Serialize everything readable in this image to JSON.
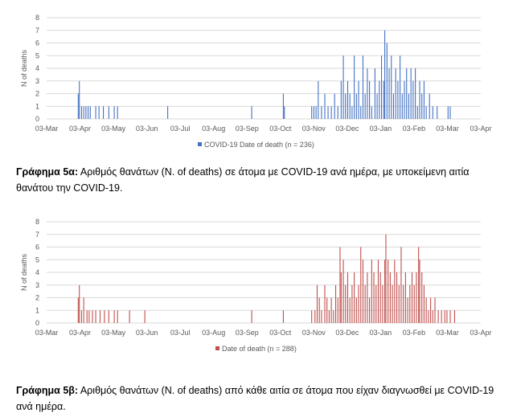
{
  "chart_data": [
    {
      "type": "bar",
      "ylabel": "N of deaths",
      "ylim": [
        0,
        8
      ],
      "yticks": [
        0,
        1,
        2,
        3,
        4,
        5,
        6,
        7,
        8
      ],
      "x_range": [
        "2020-03-01",
        "2021-04-03"
      ],
      "x_ticks": [
        "03-Mar",
        "03-Apr",
        "03-May",
        "03-Jun",
        "03-Jul",
        "03-Aug",
        "03-Sep",
        "03-Oct",
        "03-Nov",
        "03-Dec",
        "03-Jan",
        "03-Feb",
        "03-Mar",
        "03-Apr"
      ],
      "legend": "COVID-19 Date of death (n = 236)",
      "legend_position": "bottom",
      "grid": true,
      "color": "#4472c4",
      "series": [
        {
          "name": "COVID-19 Date of death (n = 236)",
          "points": [
            [
              "2020-03-30",
              2
            ],
            [
              "2020-03-31",
              3
            ],
            [
              "2020-04-02",
              1
            ],
            [
              "2020-04-04",
              1
            ],
            [
              "2020-04-06",
              1
            ],
            [
              "2020-04-08",
              1
            ],
            [
              "2020-04-10",
              1
            ],
            [
              "2020-04-15",
              1
            ],
            [
              "2020-04-18",
              1
            ],
            [
              "2020-04-22",
              1
            ],
            [
              "2020-04-27",
              1
            ],
            [
              "2020-05-02",
              1
            ],
            [
              "2020-05-05",
              1
            ],
            [
              "2020-06-20",
              1
            ],
            [
              "2020-09-05",
              1
            ],
            [
              "2020-10-04",
              2
            ],
            [
              "2020-10-05",
              1
            ],
            [
              "2020-10-30",
              1
            ],
            [
              "2020-11-01",
              1
            ],
            [
              "2020-11-03",
              1
            ],
            [
              "2020-11-05",
              3
            ],
            [
              "2020-11-08",
              1
            ],
            [
              "2020-11-11",
              2
            ],
            [
              "2020-11-14",
              1
            ],
            [
              "2020-11-17",
              1
            ],
            [
              "2020-11-20",
              2
            ],
            [
              "2020-11-23",
              1
            ],
            [
              "2020-11-26",
              3
            ],
            [
              "2020-11-28",
              5
            ],
            [
              "2020-11-30",
              2
            ],
            [
              "2020-12-02",
              3
            ],
            [
              "2020-12-04",
              2
            ],
            [
              "2020-12-06",
              1
            ],
            [
              "2020-12-08",
              5
            ],
            [
              "2020-12-10",
              2
            ],
            [
              "2020-12-12",
              3
            ],
            [
              "2020-12-14",
              1
            ],
            [
              "2020-12-16",
              5
            ],
            [
              "2020-12-18",
              2
            ],
            [
              "2020-12-20",
              4
            ],
            [
              "2020-12-22",
              3
            ],
            [
              "2020-12-24",
              1
            ],
            [
              "2020-12-27",
              4
            ],
            [
              "2020-12-29",
              2
            ],
            [
              "2020-12-31",
              3
            ],
            [
              "2021-01-02",
              5
            ],
            [
              "2021-01-04",
              3
            ],
            [
              "2021-01-05",
              7
            ],
            [
              "2021-01-07",
              6
            ],
            [
              "2021-01-09",
              4
            ],
            [
              "2021-01-11",
              5
            ],
            [
              "2021-01-13",
              2
            ],
            [
              "2021-01-15",
              4
            ],
            [
              "2021-01-17",
              3
            ],
            [
              "2021-01-19",
              5
            ],
            [
              "2021-01-21",
              2
            ],
            [
              "2021-01-23",
              3
            ],
            [
              "2021-01-25",
              4
            ],
            [
              "2021-01-27",
              2
            ],
            [
              "2021-01-29",
              4
            ],
            [
              "2021-01-31",
              3
            ],
            [
              "2021-02-02",
              4
            ],
            [
              "2021-02-04",
              1
            ],
            [
              "2021-02-06",
              3
            ],
            [
              "2021-02-08",
              2
            ],
            [
              "2021-02-10",
              3
            ],
            [
              "2021-02-12",
              1
            ],
            [
              "2021-02-15",
              2
            ],
            [
              "2021-02-18",
              1
            ],
            [
              "2021-02-22",
              1
            ],
            [
              "2021-03-04",
              1
            ],
            [
              "2021-03-06",
              1
            ]
          ]
        }
      ]
    },
    {
      "type": "bar",
      "ylabel": "N of deaths",
      "ylim": [
        0,
        8
      ],
      "yticks": [
        0,
        1,
        2,
        3,
        4,
        5,
        6,
        7,
        8
      ],
      "x_range": [
        "2020-03-01",
        "2021-04-03"
      ],
      "x_ticks": [
        "03-Mar",
        "03-Apr",
        "03-May",
        "03-Jun",
        "03-Jul",
        "03-Aug",
        "03-Sep",
        "03-Oct",
        "03-Nov",
        "03-Dec",
        "03-Jan",
        "03-Feb",
        "03-Mar",
        "03-Apr"
      ],
      "legend": "Date of death (n = 288)",
      "legend_position": "bottom",
      "grid": true,
      "color": "#c0504d",
      "series": [
        {
          "name": "Date of death (n = 288)",
          "points": [
            [
              "2020-03-30",
              2
            ],
            [
              "2020-03-31",
              3
            ],
            [
              "2020-04-02",
              1
            ],
            [
              "2020-04-04",
              2
            ],
            [
              "2020-04-07",
              1
            ],
            [
              "2020-04-09",
              1
            ],
            [
              "2020-04-12",
              1
            ],
            [
              "2020-04-15",
              1
            ],
            [
              "2020-04-19",
              1
            ],
            [
              "2020-04-23",
              1
            ],
            [
              "2020-04-27",
              1
            ],
            [
              "2020-05-02",
              1
            ],
            [
              "2020-05-05",
              1
            ],
            [
              "2020-05-16",
              1
            ],
            [
              "2020-05-30",
              1
            ],
            [
              "2020-09-05",
              1
            ],
            [
              "2020-10-04",
              1
            ],
            [
              "2020-10-30",
              1
            ],
            [
              "2020-11-02",
              1
            ],
            [
              "2020-11-04",
              3
            ],
            [
              "2020-11-06",
              2
            ],
            [
              "2020-11-08",
              1
            ],
            [
              "2020-11-11",
              3
            ],
            [
              "2020-11-13",
              2
            ],
            [
              "2020-11-15",
              1
            ],
            [
              "2020-11-17",
              2
            ],
            [
              "2020-11-19",
              1
            ],
            [
              "2020-11-21",
              3
            ],
            [
              "2020-11-23",
              2
            ],
            [
              "2020-11-25",
              6
            ],
            [
              "2020-11-26",
              4
            ],
            [
              "2020-11-28",
              5
            ],
            [
              "2020-11-30",
              3
            ],
            [
              "2020-12-02",
              4
            ],
            [
              "2020-12-04",
              2
            ],
            [
              "2020-12-06",
              3
            ],
            [
              "2020-12-08",
              4
            ],
            [
              "2020-12-10",
              2
            ],
            [
              "2020-12-12",
              3
            ],
            [
              "2020-12-14",
              6
            ],
            [
              "2020-12-16",
              5
            ],
            [
              "2020-12-18",
              3
            ],
            [
              "2020-12-20",
              4
            ],
            [
              "2020-12-22",
              2
            ],
            [
              "2020-12-24",
              5
            ],
            [
              "2020-12-26",
              4
            ],
            [
              "2020-12-28",
              3
            ],
            [
              "2020-12-30",
              5
            ],
            [
              "2021-01-01",
              4
            ],
            [
              "2021-01-03",
              3
            ],
            [
              "2021-01-05",
              5
            ],
            [
              "2021-01-06",
              7
            ],
            [
              "2021-01-08",
              5
            ],
            [
              "2021-01-10",
              4
            ],
            [
              "2021-01-12",
              3
            ],
            [
              "2021-01-14",
              5
            ],
            [
              "2021-01-16",
              4
            ],
            [
              "2021-01-18",
              3
            ],
            [
              "2021-01-20",
              6
            ],
            [
              "2021-01-22",
              3
            ],
            [
              "2021-01-24",
              4
            ],
            [
              "2021-01-26",
              2
            ],
            [
              "2021-01-28",
              3
            ],
            [
              "2021-01-30",
              4
            ],
            [
              "2021-02-01",
              3
            ],
            [
              "2021-02-03",
              4
            ],
            [
              "2021-02-05",
              6
            ],
            [
              "2021-02-06",
              5
            ],
            [
              "2021-02-08",
              4
            ],
            [
              "2021-02-10",
              3
            ],
            [
              "2021-02-12",
              2
            ],
            [
              "2021-02-14",
              1
            ],
            [
              "2021-02-16",
              2
            ],
            [
              "2021-02-18",
              1
            ],
            [
              "2021-02-20",
              2
            ],
            [
              "2021-02-23",
              1
            ],
            [
              "2021-02-26",
              1
            ],
            [
              "2021-03-01",
              1
            ],
            [
              "2021-03-03",
              1
            ],
            [
              "2021-03-06",
              1
            ],
            [
              "2021-03-10",
              1
            ]
          ]
        }
      ]
    }
  ],
  "captions": [
    {
      "label": "Γράφημα 5α:",
      "text": " Αριθμός θανάτων (N. of deaths) σε άτομα με COVID-19 ανά ημέρα, με υποκείμενη αιτία θανάτου την COVID-19."
    },
    {
      "label": "Γράφημα 5β:",
      "text": " Αριθμός θανάτων (N. of deaths) από κάθε αιτία σε άτομα που είχαν διαγνωσθεί με COVID-19 ανά ημέρα."
    }
  ]
}
